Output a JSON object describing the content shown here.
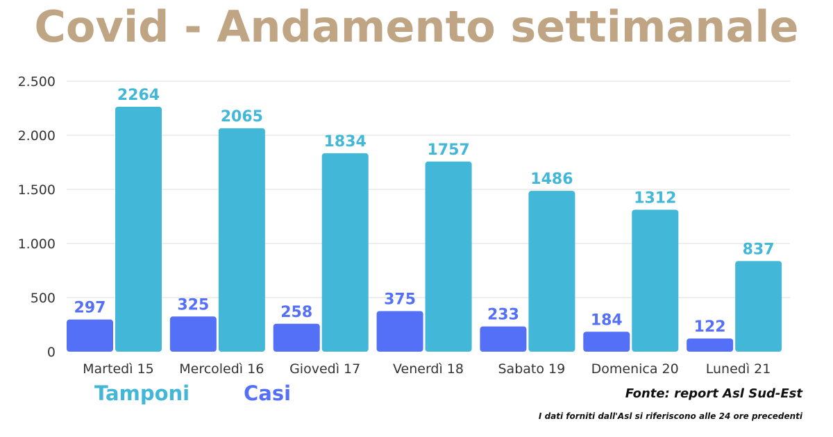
{
  "title": "Covid - Andamento settimanale",
  "legend": {
    "tamponi_label": "Tamponi",
    "casi_label": "Casi"
  },
  "source": "Fonte: report Asl Sud-Est",
  "note": "I dati forniti dall'Asl si riferiscono alle 24 ore precedenti",
  "colors": {
    "title": "#bfa584",
    "tamponi": "#42b7d7",
    "casi": "#5470f7",
    "gridline": "#dddddd",
    "axis_text": "#333333"
  },
  "chart_data": {
    "type": "bar",
    "categories": [
      "Martedì 15",
      "Mercoledì 16",
      "Giovedì 17",
      "Venerdì 18",
      "Sabato 19",
      "Domenica 20",
      "Lunedì 21"
    ],
    "series": [
      {
        "name": "Casi",
        "values": [
          297,
          325,
          258,
          375,
          233,
          184,
          122
        ]
      },
      {
        "name": "Tamponi",
        "values": [
          2264,
          2065,
          1834,
          1757,
          1486,
          1312,
          837
        ]
      }
    ],
    "ylim": [
      0,
      2500
    ],
    "yticks": [
      0,
      500,
      1000,
      1500,
      2000,
      2500
    ],
    "ytick_labels": [
      "0",
      "500",
      "1.000",
      "1.500",
      "2.000",
      "2.500"
    ],
    "grid": true
  }
}
